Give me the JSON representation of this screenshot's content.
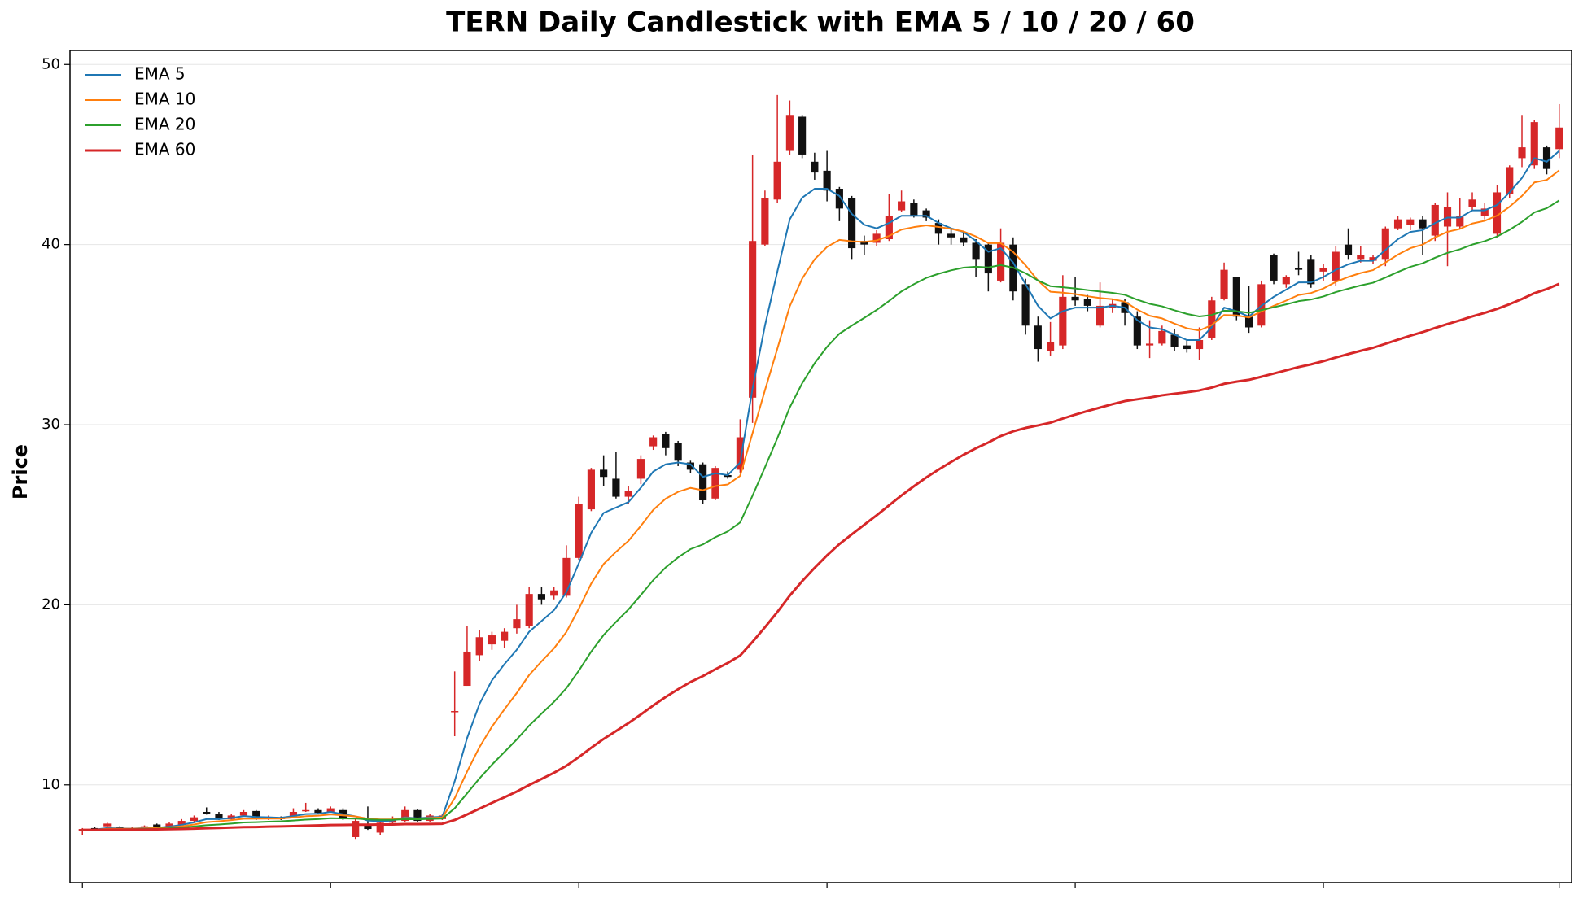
{
  "chart_data": {
    "type": "candlestick",
    "title": "TERN Daily Candlestick with EMA 5 / 10 / 20 / 60",
    "y_label": "Price",
    "x": [
      0,
      1,
      2,
      3,
      4,
      5,
      6,
      7,
      8,
      9,
      10,
      11,
      12,
      13,
      14,
      15,
      16,
      17,
      18,
      19,
      20,
      21,
      22,
      23,
      24,
      25,
      26,
      27,
      28,
      29,
      30,
      31,
      32,
      33,
      34,
      35,
      36,
      37,
      38,
      39,
      40,
      41,
      42,
      43,
      44,
      45,
      46,
      47,
      48,
      49,
      50,
      51,
      52,
      53,
      54,
      55,
      56,
      57,
      58,
      59,
      60,
      61,
      62,
      63,
      64,
      65,
      66,
      67,
      68,
      69,
      70,
      71,
      72,
      73,
      74,
      75,
      76,
      77,
      78,
      79,
      80,
      81,
      82,
      83,
      84,
      85,
      86,
      87,
      88,
      89,
      90,
      91,
      92,
      93,
      94,
      95,
      96,
      97,
      98,
      99,
      100,
      101,
      102,
      103,
      104,
      105,
      106,
      107,
      108,
      109,
      110,
      111,
      112,
      113,
      114,
      115,
      116,
      117,
      118,
      119
    ],
    "open": [
      7.45,
      7.6,
      7.7,
      7.65,
      7.5,
      7.6,
      7.8,
      7.6,
      7.8,
      8.0,
      8.5,
      8.4,
      8.1,
      8.3,
      8.55,
      8.1,
      8.2,
      8.2,
      8.55,
      8.6,
      8.5,
      8.6,
      7.1,
      7.8,
      7.35,
      7.9,
      8.0,
      8.6,
      8.0,
      8.1,
      14.05,
      15.5,
      17.2,
      17.8,
      18.0,
      18.7,
      18.8,
      20.6,
      20.5,
      20.5,
      22.6,
      25.3,
      27.5,
      27.0,
      26.0,
      27.0,
      28.8,
      29.5,
      29.0,
      27.9,
      27.8,
      25.9,
      27.2,
      27.5,
      31.5,
      40.0,
      42.5,
      45.2,
      47.1,
      44.6,
      44.1,
      43.1,
      42.6,
      40.2,
      40.1,
      40.3,
      41.9,
      42.3,
      41.9,
      41.2,
      40.6,
      40.4,
      40.1,
      40.0,
      38.0,
      40.0,
      37.8,
      35.5,
      34.1,
      34.4,
      37.1,
      37.0,
      35.5,
      36.5,
      36.8,
      36.0,
      34.4,
      34.5,
      35.0,
      34.4,
      34.2,
      34.8,
      37.0,
      38.2,
      36.0,
      35.5,
      39.4,
      37.8,
      38.7,
      39.2,
      38.5,
      38.0,
      40.0,
      39.2,
      39.1,
      39.2,
      40.9,
      41.1,
      41.4,
      40.5,
      41.0,
      41.0,
      42.1,
      41.6,
      40.6,
      42.8,
      44.8,
      44.4,
      45.4,
      45.3
    ],
    "high": [
      7.6,
      7.65,
      7.9,
      7.7,
      7.65,
      7.75,
      7.85,
      7.95,
      8.1,
      8.3,
      8.75,
      8.5,
      8.4,
      8.6,
      8.6,
      8.3,
      8.25,
      8.7,
      9.0,
      8.7,
      8.8,
      8.7,
      8.15,
      8.8,
      8.0,
      8.25,
      8.8,
      8.65,
      8.4,
      8.4,
      16.3,
      18.8,
      18.6,
      18.5,
      18.7,
      20.0,
      21.0,
      21.0,
      21.0,
      23.3,
      26.0,
      27.6,
      28.3,
      28.5,
      26.6,
      28.3,
      29.4,
      29.6,
      29.1,
      28.0,
      27.9,
      27.7,
      27.4,
      30.3,
      45.0,
      43.0,
      48.3,
      48.0,
      47.2,
      45.1,
      45.2,
      43.2,
      42.7,
      40.5,
      40.8,
      42.8,
      43.0,
      42.5,
      42.0,
      41.4,
      40.9,
      40.7,
      40.3,
      40.1,
      40.9,
      40.4,
      38.1,
      36.0,
      35.7,
      38.3,
      38.2,
      37.2,
      37.9,
      37.0,
      37.0,
      36.3,
      35.8,
      35.5,
      35.3,
      34.7,
      35.4,
      37.1,
      39.0,
      37.9,
      37.7,
      38.0,
      39.5,
      38.3,
      39.6,
      39.4,
      38.9,
      39.9,
      40.9,
      39.9,
      39.4,
      41.0,
      41.6,
      41.5,
      41.6,
      42.3,
      42.9,
      42.6,
      42.9,
      42.3,
      43.3,
      44.4,
      47.2,
      46.9,
      45.5,
      47.8
    ],
    "low": [
      7.2,
      7.45,
      7.6,
      7.45,
      7.45,
      7.55,
      7.55,
      7.55,
      7.75,
      7.95,
      8.35,
      8.05,
      8.05,
      8.25,
      8.05,
      8.05,
      8.05,
      8.15,
      8.5,
      8.4,
      8.45,
      8.05,
      7.0,
      7.5,
      7.2,
      7.85,
      7.95,
      7.95,
      7.95,
      8.05,
      12.7,
      15.5,
      16.9,
      17.5,
      17.6,
      18.4,
      18.7,
      20.0,
      20.3,
      20.4,
      22.5,
      25.2,
      26.6,
      25.9,
      25.6,
      26.7,
      28.6,
      28.3,
      27.7,
      27.3,
      25.6,
      25.8,
      27.0,
      27.3,
      30.1,
      39.9,
      42.3,
      45.0,
      44.8,
      43.6,
      42.4,
      41.3,
      39.2,
      39.4,
      39.9,
      40.2,
      41.8,
      41.5,
      41.3,
      40.0,
      40.0,
      39.9,
      38.2,
      37.4,
      37.9,
      36.9,
      35.0,
      33.5,
      33.8,
      34.2,
      36.6,
      36.3,
      35.4,
      36.2,
      35.5,
      34.2,
      33.7,
      34.4,
      34.1,
      34.0,
      33.6,
      34.7,
      36.9,
      35.8,
      35.1,
      35.4,
      37.8,
      37.6,
      38.3,
      37.6,
      38.0,
      37.7,
      39.2,
      39.0,
      38.9,
      38.8,
      40.8,
      40.8,
      39.4,
      40.2,
      38.8,
      40.9,
      41.9,
      41.4,
      40.4,
      42.6,
      44.3,
      44.2,
      43.9,
      44.8
    ],
    "close": [
      7.55,
      7.5,
      7.85,
      7.5,
      7.6,
      7.7,
      7.6,
      7.85,
      8.0,
      8.2,
      8.4,
      8.1,
      8.3,
      8.5,
      8.1,
      8.2,
      8.1,
      8.5,
      8.6,
      8.45,
      8.7,
      8.1,
      8.0,
      7.55,
      7.9,
      8.1,
      8.6,
      8.0,
      8.3,
      8.3,
      14.1,
      17.4,
      18.2,
      18.3,
      18.5,
      19.2,
      20.6,
      20.3,
      20.8,
      22.6,
      25.6,
      27.5,
      27.1,
      26.0,
      26.3,
      28.1,
      29.3,
      28.7,
      28.0,
      27.5,
      25.8,
      27.6,
      27.1,
      29.3,
      40.2,
      42.6,
      44.6,
      47.2,
      45.0,
      44.0,
      43.0,
      42.0,
      39.8,
      40.0,
      40.6,
      41.6,
      42.4,
      41.6,
      41.5,
      40.6,
      40.4,
      40.1,
      39.2,
      38.4,
      40.1,
      37.4,
      35.5,
      34.2,
      34.6,
      37.1,
      36.9,
      36.6,
      36.6,
      36.7,
      36.2,
      34.4,
      34.5,
      35.2,
      34.3,
      34.2,
      34.7,
      36.9,
      38.6,
      36.0,
      35.4,
      37.8,
      38.0,
      38.2,
      38.6,
      37.8,
      38.7,
      39.6,
      39.4,
      39.4,
      39.3,
      40.9,
      41.4,
      41.4,
      40.9,
      42.2,
      42.1,
      41.6,
      42.5,
      42.0,
      42.9,
      44.3,
      45.4,
      46.8,
      44.2,
      46.5
    ],
    "up_color": "#d62728",
    "down_color": "#111111",
    "series": [
      {
        "name": "EMA 5",
        "color": "#1f77b4",
        "values": [
          7.5,
          7.52,
          7.6,
          7.58,
          7.57,
          7.6,
          7.62,
          7.68,
          7.78,
          7.92,
          8.1,
          8.1,
          8.16,
          8.27,
          8.22,
          8.2,
          8.17,
          8.27,
          8.38,
          8.4,
          8.5,
          8.37,
          8.25,
          8.02,
          7.98,
          8.02,
          8.2,
          8.14,
          8.2,
          8.23,
          10.2,
          12.6,
          14.5,
          15.8,
          16.7,
          17.5,
          18.5,
          19.1,
          19.7,
          20.7,
          22.3,
          24.0,
          25.1,
          25.4,
          25.7,
          26.5,
          27.4,
          27.8,
          27.9,
          27.8,
          27.1,
          27.3,
          27.2,
          27.9,
          32.0,
          35.5,
          38.5,
          41.4,
          42.6,
          43.1,
          43.1,
          42.7,
          41.7,
          41.1,
          40.9,
          41.2,
          41.6,
          41.6,
          41.6,
          41.2,
          40.9,
          40.7,
          40.2,
          39.6,
          39.8,
          39.0,
          37.8,
          36.6,
          35.9,
          36.3,
          36.5,
          36.5,
          36.5,
          36.6,
          36.5,
          35.8,
          35.4,
          35.3,
          35.0,
          34.7,
          34.7,
          35.4,
          36.5,
          36.3,
          36.0,
          36.6,
          37.1,
          37.5,
          37.9,
          37.9,
          38.2,
          38.6,
          38.9,
          39.1,
          39.1,
          39.7,
          40.3,
          40.7,
          40.8,
          41.2,
          41.5,
          41.5,
          41.9,
          41.9,
          42.2,
          42.9,
          43.7,
          44.8,
          44.6,
          45.2
        ]
      },
      {
        "name": "EMA 10",
        "color": "#ff7f0e",
        "values": [
          7.5,
          7.51,
          7.56,
          7.56,
          7.56,
          7.58,
          7.6,
          7.64,
          7.7,
          7.8,
          7.93,
          7.98,
          8.04,
          8.12,
          8.12,
          8.13,
          8.13,
          8.19,
          8.26,
          8.29,
          8.36,
          8.31,
          8.25,
          8.12,
          8.08,
          8.08,
          8.16,
          8.13,
          8.16,
          8.19,
          9.26,
          10.74,
          12.1,
          13.23,
          14.19,
          15.1,
          16.1,
          16.86,
          17.58,
          18.49,
          19.78,
          21.18,
          22.26,
          22.94,
          23.55,
          24.38,
          25.27,
          25.89,
          26.27,
          26.49,
          26.36,
          26.59,
          26.68,
          27.16,
          29.53,
          31.91,
          34.22,
          36.58,
          38.11,
          39.18,
          39.87,
          40.26,
          40.18,
          40.15,
          40.23,
          40.48,
          40.83,
          40.97,
          41.07,
          40.98,
          40.87,
          40.73,
          40.45,
          40.08,
          40.08,
          39.59,
          38.85,
          38.0,
          37.38,
          37.33,
          37.25,
          37.13,
          37.03,
          36.97,
          36.83,
          36.39,
          36.05,
          35.9,
          35.61,
          35.35,
          35.23,
          35.53,
          36.09,
          36.07,
          35.95,
          36.29,
          36.6,
          36.89,
          37.2,
          37.31,
          37.56,
          37.93,
          38.2,
          38.42,
          38.58,
          39.0,
          39.44,
          39.8,
          40.0,
          40.4,
          40.71,
          40.87,
          41.17,
          41.32,
          41.61,
          42.1,
          42.7,
          43.45,
          43.59,
          44.12
        ]
      },
      {
        "name": "EMA 20",
        "color": "#2ca02c",
        "values": [
          7.5,
          7.5,
          7.53,
          7.53,
          7.54,
          7.55,
          7.56,
          7.59,
          7.63,
          7.69,
          7.76,
          7.8,
          7.85,
          7.91,
          7.93,
          7.96,
          7.98,
          8.02,
          8.07,
          8.1,
          8.15,
          8.14,
          8.13,
          8.08,
          8.06,
          8.06,
          8.1,
          8.09,
          8.11,
          8.13,
          8.7,
          9.53,
          10.36,
          11.12,
          11.82,
          12.52,
          13.29,
          13.96,
          14.61,
          15.37,
          16.34,
          17.4,
          18.32,
          19.05,
          19.74,
          20.54,
          21.37,
          22.07,
          22.63,
          23.09,
          23.35,
          23.75,
          24.07,
          24.57,
          26.06,
          27.63,
          29.25,
          30.96,
          32.3,
          33.41,
          34.32,
          35.05,
          35.5,
          35.93,
          36.37,
          36.87,
          37.4,
          37.8,
          38.15,
          38.38,
          38.57,
          38.72,
          38.77,
          38.73,
          38.86,
          38.72,
          38.41,
          38.01,
          37.69,
          37.63,
          37.56,
          37.47,
          37.39,
          37.32,
          37.21,
          36.94,
          36.71,
          36.57,
          36.35,
          36.15,
          36.01,
          36.09,
          36.33,
          36.3,
          36.21,
          36.36,
          36.52,
          36.68,
          36.86,
          36.95,
          37.12,
          37.36,
          37.55,
          37.73,
          37.88,
          38.17,
          38.48,
          38.76,
          38.96,
          39.27,
          39.54,
          39.74,
          40.0,
          40.19,
          40.45,
          40.82,
          41.26,
          41.79,
          42.02,
          42.45
        ]
      },
      {
        "name": "EMA 60",
        "color": "#d62728",
        "values": [
          7.5,
          7.5,
          7.51,
          7.51,
          7.52,
          7.52,
          7.53,
          7.54,
          7.55,
          7.57,
          7.59,
          7.61,
          7.63,
          7.65,
          7.66,
          7.68,
          7.69,
          7.71,
          7.73,
          7.75,
          7.77,
          7.78,
          7.79,
          7.79,
          7.8,
          7.8,
          7.82,
          7.82,
          7.83,
          7.84,
          8.05,
          8.36,
          8.68,
          9.0,
          9.31,
          9.63,
          9.99,
          10.33,
          10.67,
          11.06,
          11.54,
          12.06,
          12.55,
          12.99,
          13.43,
          13.91,
          14.41,
          14.88,
          15.31,
          15.71,
          16.04,
          16.42,
          16.77,
          17.18,
          17.94,
          18.75,
          19.6,
          20.51,
          21.31,
          22.05,
          22.74,
          23.37,
          23.91,
          24.44,
          24.97,
          25.52,
          26.07,
          26.58,
          27.07,
          27.51,
          27.93,
          28.33,
          28.69,
          29.01,
          29.37,
          29.63,
          29.82,
          29.96,
          30.11,
          30.34,
          30.56,
          30.76,
          30.95,
          31.14,
          31.31,
          31.41,
          31.51,
          31.63,
          31.72,
          31.8,
          31.9,
          32.06,
          32.27,
          32.39,
          32.49,
          32.66,
          32.84,
          33.02,
          33.2,
          33.35,
          33.53,
          33.73,
          33.92,
          34.1,
          34.27,
          34.49,
          34.72,
          34.94,
          35.14,
          35.37,
          35.59,
          35.79,
          36.01,
          36.21,
          36.43,
          36.69,
          36.98,
          37.3,
          37.53,
          37.82
        ]
      }
    ],
    "xlim": [
      -1,
      120
    ],
    "xticks": [
      0,
      20,
      40,
      60,
      80,
      100,
      119
    ],
    "ylim": [
      4.57,
      50.78
    ],
    "yticks": [
      10,
      20,
      30,
      40,
      50
    ],
    "grid": true,
    "legend": "upper left"
  }
}
